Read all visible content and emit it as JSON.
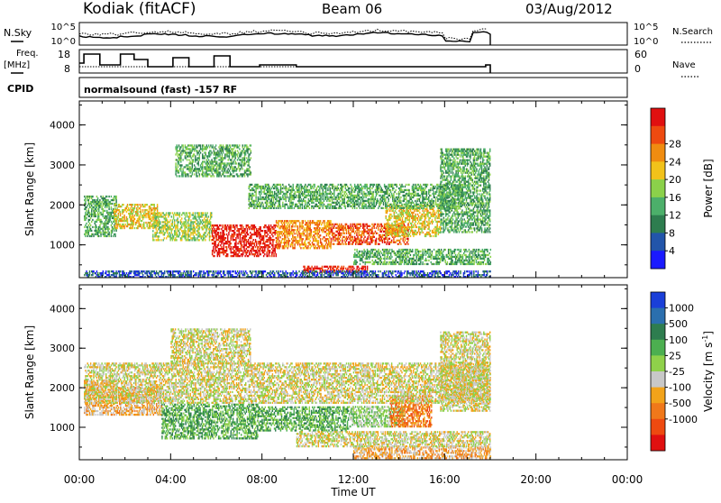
{
  "header": {
    "station": "Kodiak (fitACF)",
    "beam": "Beam 06",
    "date": "03/Aug/2012"
  },
  "top_panels": {
    "nsky_label": "N.Sky",
    "nsky_ticks": [
      "10^5",
      "10^0"
    ],
    "nsearch_label": "N.Search",
    "nsearch_ticks": [
      "10^5",
      "10^0"
    ],
    "freq_label_1": "Freq.",
    "freq_label_2": "[MHz]",
    "freq_ticks": [
      "18",
      "8"
    ],
    "nave_label": "Nave",
    "nave_ticks": [
      "60",
      "0"
    ],
    "cpid_label": "CPID",
    "cpid_text": "normalsound (fast) -157 RF"
  },
  "chart_data": [
    {
      "type": "heatmap",
      "name": "power",
      "ylabel": "Slant Range [km]",
      "yticks": [
        "1000",
        "2000",
        "3000",
        "4000"
      ],
      "ylim": [
        180,
        4600
      ],
      "xlim": [
        0,
        24
      ],
      "colorbar": {
        "label": "Power [dB]",
        "ticks": [
          "4",
          "8",
          "12",
          "16",
          "20",
          "24",
          "28"
        ],
        "colors": [
          "#1a1aff",
          "#2255aa",
          "#2e7d4f",
          "#4caf6a",
          "#8bd14a",
          "#f2c21a",
          "#f08c10",
          "#ee4a10",
          "#e01010"
        ]
      },
      "regions": [
        {
          "t0": 0.2,
          "t1": 1.6,
          "r0": 1200,
          "r1": 2200,
          "level": 3
        },
        {
          "t0": 1.5,
          "t1": 3.4,
          "r0": 1400,
          "r1": 2000,
          "level": 5
        },
        {
          "t0": 3.2,
          "t1": 5.8,
          "r0": 1100,
          "r1": 1800,
          "level": 4
        },
        {
          "t0": 5.8,
          "t1": 8.6,
          "r0": 700,
          "r1": 1500,
          "level": 8
        },
        {
          "t0": 8.6,
          "t1": 11.0,
          "r0": 900,
          "r1": 1600,
          "level": 6
        },
        {
          "t0": 11.0,
          "t1": 14.4,
          "r0": 1000,
          "r1": 1500,
          "level": 7
        },
        {
          "t0": 13.4,
          "t1": 15.8,
          "r0": 1200,
          "r1": 2000,
          "level": 5
        },
        {
          "t0": 7.4,
          "t1": 16.8,
          "r0": 1900,
          "r1": 2500,
          "level": 3
        },
        {
          "t0": 15.8,
          "t1": 18.0,
          "r0": 1300,
          "r1": 3400,
          "level": 3
        },
        {
          "t0": 4.2,
          "t1": 7.5,
          "r0": 2700,
          "r1": 3500,
          "level": 3
        },
        {
          "t0": 12.0,
          "t1": 18.0,
          "r0": 500,
          "r1": 900,
          "level": 3
        },
        {
          "t0": 9.8,
          "t1": 12.6,
          "r0": 300,
          "r1": 450,
          "level": 8
        },
        {
          "t0": 0.2,
          "t1": 18.0,
          "r0": 180,
          "r1": 350,
          "level": 1
        }
      ]
    },
    {
      "type": "heatmap",
      "name": "velocity",
      "ylabel": "Slant Range [km]",
      "yticks": [
        "1000",
        "2000",
        "3000",
        "4000"
      ],
      "ylim": [
        180,
        4600
      ],
      "xlim": [
        0,
        24
      ],
      "xlabel": "Time UT",
      "xticks": [
        "00:00",
        "04:00",
        "08:00",
        "12:00",
        "16:00",
        "20:00",
        "00:00"
      ],
      "colorbar": {
        "label": "Velocity [m s",
        "label_sup": "-1",
        "label_end": "]",
        "ticks": [
          "1000",
          "500",
          "100",
          "25",
          "-25",
          "-100",
          "-500",
          "-1000"
        ],
        "colors": [
          "#1a3fd8",
          "#2b6fae",
          "#2e7d4f",
          "#4caf50",
          "#8fd14a",
          "#c8c8c8",
          "#f2a31a",
          "#f0781a",
          "#ee4a10",
          "#e01010"
        ]
      },
      "regions": [
        {
          "t0": 0.2,
          "t1": 1.6,
          "r0": 1300,
          "r1": 2200,
          "level": 6
        },
        {
          "t0": 1.6,
          "t1": 3.6,
          "r0": 1300,
          "r1": 2000,
          "level": 6
        },
        {
          "t0": 3.6,
          "t1": 7.8,
          "r0": 700,
          "r1": 1600,
          "level": 3
        },
        {
          "t0": 7.8,
          "t1": 11.8,
          "r0": 900,
          "r1": 1500,
          "level": 3
        },
        {
          "t0": 11.8,
          "t1": 14.2,
          "r0": 1000,
          "r1": 1500,
          "level": 4
        },
        {
          "t0": 13.6,
          "t1": 15.4,
          "r0": 1000,
          "r1": 1800,
          "level": 7
        },
        {
          "t0": 0.2,
          "t1": 18.0,
          "r0": 1600,
          "r1": 2600,
          "level": 5
        },
        {
          "t0": 4.0,
          "t1": 7.5,
          "r0": 2600,
          "r1": 3500,
          "level": 5
        },
        {
          "t0": 15.8,
          "t1": 18.0,
          "r0": 1400,
          "r1": 3400,
          "level": 5
        },
        {
          "t0": 12.0,
          "t1": 18.0,
          "r0": 200,
          "r1": 500,
          "level": 6
        },
        {
          "t0": 9.5,
          "t1": 18.0,
          "r0": 500,
          "r1": 900,
          "level": 5
        }
      ]
    }
  ]
}
